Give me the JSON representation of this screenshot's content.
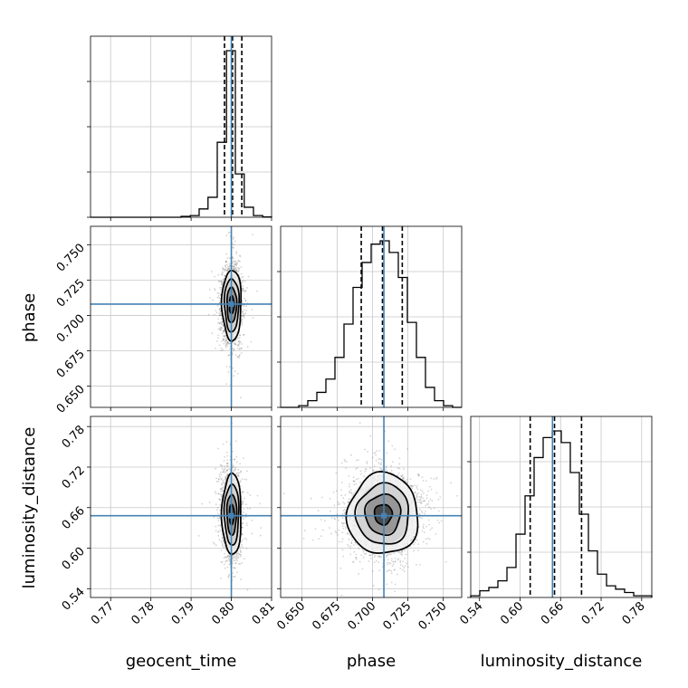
{
  "chart_data": {
    "type": "corner",
    "parameters": [
      "geocent_time",
      "phase",
      "luminosity_distance"
    ],
    "ranges": {
      "geocent_time": [
        0.765,
        0.81
      ],
      "phase": [
        0.635,
        0.763
      ],
      "luminosity_distance": [
        0.527,
        0.795
      ]
    },
    "ticks": {
      "geocent_time": [
        "0.77",
        "0.78",
        "0.79",
        "0.80",
        "0.81"
      ],
      "phase": [
        "0.650",
        "0.675",
        "0.700",
        "0.725",
        "0.750"
      ],
      "luminosity_distance": [
        "0.54",
        "0.60",
        "0.66",
        "0.72",
        "0.78"
      ]
    },
    "truths": {
      "geocent_time": 0.8,
      "phase": 0.708,
      "luminosity_distance": 0.648
    },
    "truth_color": "#4682b4",
    "quantiles": {
      "geocent_time": [
        0.7983,
        0.8003,
        0.8026
      ],
      "phase": [
        0.692,
        0.707,
        0.721
      ],
      "luminosity_distance": [
        0.615,
        0.651,
        0.691
      ]
    },
    "histograms": {
      "geocent_time": {
        "edges": [
          0.765,
          0.7672,
          0.7695,
          0.7718,
          0.774,
          0.7762,
          0.7785,
          0.7808,
          0.783,
          0.7852,
          0.7875,
          0.7898,
          0.792,
          0.7942,
          0.7965,
          0.7988,
          0.801,
          0.8032,
          0.8055,
          0.8078,
          0.81
        ],
        "counts": [
          0,
          0,
          0,
          0,
          0,
          0,
          0,
          0,
          0,
          0,
          0.005,
          0.01,
          0.05,
          0.12,
          0.45,
          1.0,
          0.26,
          0.06,
          0.01,
          0.002
        ]
      },
      "phase": {
        "edges": [
          0.635,
          0.6414,
          0.6478,
          0.6542,
          0.6606,
          0.667,
          0.6734,
          0.6798,
          0.6862,
          0.6926,
          0.699,
          0.7054,
          0.7118,
          0.7182,
          0.7246,
          0.731,
          0.7374,
          0.7438,
          0.7502,
          0.7566,
          0.763
        ],
        "counts": [
          0,
          0,
          0.01,
          0.04,
          0.09,
          0.17,
          0.3,
          0.5,
          0.72,
          0.87,
          0.98,
          1.0,
          0.93,
          0.78,
          0.51,
          0.3,
          0.12,
          0.04,
          0.01,
          0
        ]
      },
      "luminosity_distance": {
        "edges": [
          0.527,
          0.5404,
          0.5538,
          0.5672,
          0.5806,
          0.594,
          0.6074,
          0.6208,
          0.6342,
          0.6476,
          0.661,
          0.6744,
          0.6878,
          0.7012,
          0.7146,
          0.728,
          0.7414,
          0.7548,
          0.7682,
          0.7816,
          0.795
        ],
        "counts": [
          0.01,
          0.04,
          0.06,
          0.1,
          0.18,
          0.38,
          0.61,
          0.84,
          0.96,
          1.0,
          0.93,
          0.75,
          0.5,
          0.28,
          0.14,
          0.07,
          0.05,
          0.03,
          0.01,
          0.01
        ]
      }
    },
    "posterior_2d": {
      "geocent_time": {
        "mean": 0.8001,
        "sd": 0.0012
      },
      "phase": {
        "mean": 0.7075,
        "sd": 0.0125
      },
      "luminosity_distance": {
        "mean": 0.65,
        "sd": 0.03
      }
    },
    "contour_levels_sigma": [
      0.5,
      1.0,
      1.5,
      2.0
    ],
    "grid": true,
    "line_color": "#000000",
    "sample_color": "#555555"
  }
}
